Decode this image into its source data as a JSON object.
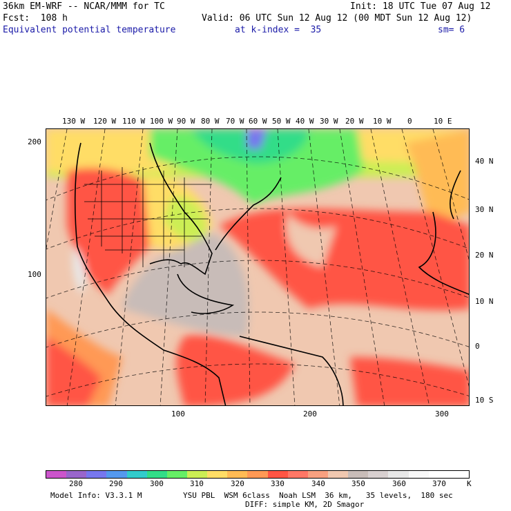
{
  "header": {
    "model_title": "36km EM-WRF -- NCAR/MMM for TC",
    "init": "Init: 18 UTC Tue 07 Aug 12",
    "fcst": "Fcst:  108 h",
    "valid": "Valid: 06 UTC Sun 12 Aug 12 (00 MDT Sun 12 Aug 12)",
    "field": "Equivalent potential temperature",
    "level": "at k-index =  35",
    "smoothing": "sm= 6"
  },
  "map": {
    "top_lon_labels": [
      "130 W",
      "120 W",
      "110 W",
      "100 W",
      "90 W",
      "80 W",
      "70 W",
      "60 W",
      "50 W",
      "40 W",
      "30 W",
      "20 W",
      "10 W",
      "0",
      "10 E"
    ],
    "right_lat_labels": [
      "40 N",
      "30 N",
      "20 N",
      "10 N",
      "0",
      "10 S"
    ],
    "left_grid_labels": [
      "200",
      "100"
    ],
    "bottom_grid_labels": [
      "100",
      "200",
      "300"
    ]
  },
  "colorbar": {
    "colors": [
      "#cc55cc",
      "#9966cc",
      "#7777ee",
      "#5599ee",
      "#33cccc",
      "#33dd88",
      "#66ee66",
      "#ccee55",
      "#ffdd66",
      "#ffbb55",
      "#ff9955",
      "#ff5544",
      "#ff7766",
      "#f8a080",
      "#f0c8b0",
      "#c8bcb8",
      "#d8d0d0",
      "#e8e8e8",
      "#f8f8f8",
      "#ffffff",
      "#ffffff"
    ],
    "labels": [
      "280",
      "290",
      "300",
      "310",
      "320",
      "330",
      "340",
      "350",
      "360",
      "370"
    ],
    "unit": "K"
  },
  "footer": {
    "model_info": "Model Info: V3.3.1 M",
    "physics_line1": "YSU PBL  WSM 6class  Noah LSM  36 km,   35 levels,  180 sec",
    "physics_line2": "DIFF: simple KM, 2D Smagor"
  }
}
